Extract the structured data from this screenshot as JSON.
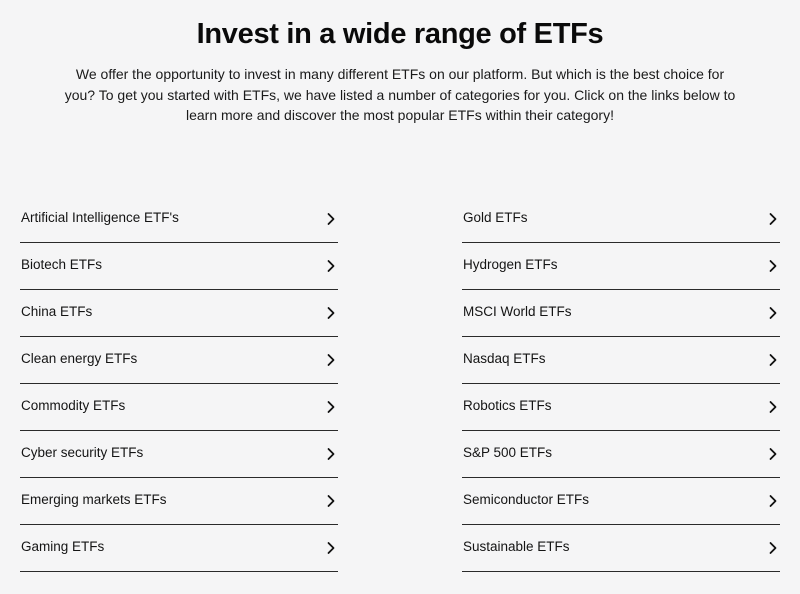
{
  "header": {
    "title": "Invest in a wide range of ETFs",
    "intro": "We offer the opportunity to invest in many different ETFs on our platform. But which is the best choice for you? To get you started with ETFs, we have listed a number of categories for you. Click on the links below to learn more and discover the most popular ETFs within their category!"
  },
  "categories": {
    "left": [
      {
        "label": "Artificial Intelligence ETF's",
        "icon": "chevron-right-icon"
      },
      {
        "label": "Biotech ETFs",
        "icon": "chevron-right-icon"
      },
      {
        "label": "China ETFs",
        "icon": "chevron-right-icon"
      },
      {
        "label": "Clean energy ETFs",
        "icon": "chevron-right-icon"
      },
      {
        "label": "Commodity ETFs",
        "icon": "chevron-right-icon"
      },
      {
        "label": "Cyber security ETFs",
        "icon": "chevron-right-icon"
      },
      {
        "label": "Emerging markets ETFs",
        "icon": "chevron-right-icon"
      },
      {
        "label": "Gaming ETFs",
        "icon": "chevron-right-icon"
      }
    ],
    "right": [
      {
        "label": "Gold ETFs",
        "icon": "chevron-right-icon"
      },
      {
        "label": "Hydrogen ETFs",
        "icon": "chevron-right-icon"
      },
      {
        "label": "MSCI World ETFs",
        "icon": "chevron-right-icon"
      },
      {
        "label": "Nasdaq ETFs",
        "icon": "chevron-right-icon"
      },
      {
        "label": "Robotics ETFs",
        "icon": "chevron-right-icon"
      },
      {
        "label": "S&P 500 ETFs",
        "icon": "chevron-right-icon"
      },
      {
        "label": "Semiconductor ETFs",
        "icon": "chevron-right-icon"
      },
      {
        "label": "Sustainable ETFs",
        "icon": "chevron-right-icon"
      }
    ]
  },
  "colors": {
    "background": "#f5f5f6",
    "text": "#111111",
    "divider": "#2a2a2a"
  }
}
